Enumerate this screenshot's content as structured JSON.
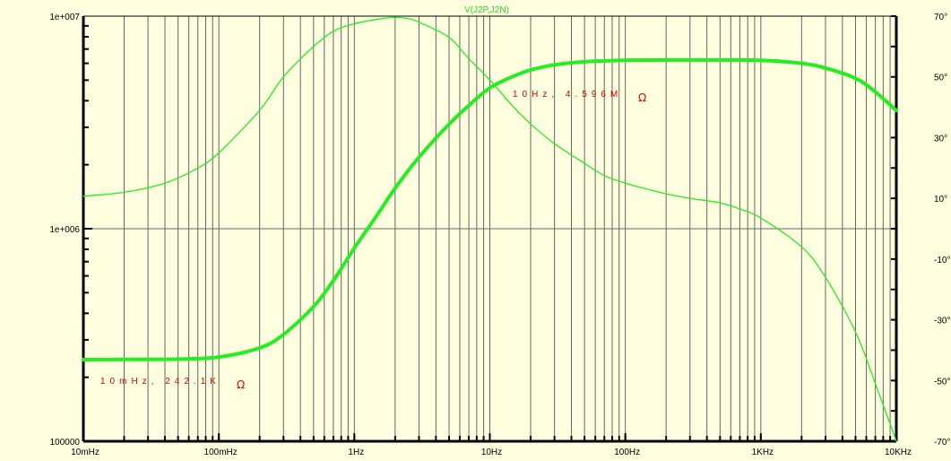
{
  "chart_data": {
    "type": "line",
    "title": "V(J2P,J2N)",
    "x_scale": "log",
    "x_range_hz": [
      0.01,
      10000
    ],
    "x_tick_labels": [
      {
        "hz": 0.01,
        "label": "10mHz"
      },
      {
        "hz": 0.1,
        "label": "100mHz"
      },
      {
        "hz": 1,
        "label": "1Hz"
      },
      {
        "hz": 10,
        "label": "10Hz"
      },
      {
        "hz": 100,
        "label": "100Hz"
      },
      {
        "hz": 1000,
        "label": "1KHz"
      },
      {
        "hz": 10000,
        "label": "10KHz"
      }
    ],
    "y_left_scale": "log",
    "y_left_range": [
      100000,
      10000000
    ],
    "y_left_tick_labels": [
      {
        "value": 100000,
        "label": "100000"
      },
      {
        "value": 1000000,
        "label": "1e+006"
      },
      {
        "value": 10000000,
        "label": "1e+007"
      }
    ],
    "y_right_range_deg": [
      -70,
      70
    ],
    "y_right_tick_labels": [
      {
        "value": 70,
        "label": "70°"
      },
      {
        "value": 50,
        "label": "50°"
      },
      {
        "value": 30,
        "label": "30°"
      },
      {
        "value": 10,
        "label": "10°"
      },
      {
        "value": -10,
        "label": "-10°"
      },
      {
        "value": -30,
        "label": "-30°"
      },
      {
        "value": -50,
        "label": "-50°"
      },
      {
        "value": -70,
        "label": "-70°"
      }
    ],
    "grid": true,
    "series": [
      {
        "axis": "left",
        "points": [
          [
            0.01,
            242100
          ],
          [
            0.02,
            242500
          ],
          [
            0.05,
            243500
          ],
          [
            0.1,
            249000
          ],
          [
            0.2,
            275000
          ],
          [
            0.3,
            318000
          ],
          [
            0.5,
            430000
          ],
          [
            0.7,
            570000
          ],
          [
            1,
            810000
          ],
          [
            1.5,
            1180000
          ],
          [
            2,
            1550000
          ],
          [
            3,
            2170000
          ],
          [
            5,
            3100000
          ],
          [
            7,
            3800000
          ],
          [
            10,
            4596000
          ],
          [
            15,
            5220000
          ],
          [
            20,
            5580000
          ],
          [
            30,
            5900000
          ],
          [
            50,
            6100000
          ],
          [
            100,
            6200000
          ],
          [
            200,
            6220000
          ],
          [
            500,
            6220000
          ],
          [
            1000,
            6200000
          ],
          [
            2000,
            6000000
          ],
          [
            3000,
            5700000
          ],
          [
            5000,
            5100000
          ],
          [
            7000,
            4400000
          ],
          [
            10000,
            3600000
          ]
        ]
      },
      {
        "axis": "right",
        "points": [
          [
            0.01,
            10.7
          ],
          [
            0.02,
            12
          ],
          [
            0.04,
            15
          ],
          [
            0.07,
            20
          ],
          [
            0.1,
            25
          ],
          [
            0.2,
            39
          ],
          [
            0.3,
            50
          ],
          [
            0.5,
            60
          ],
          [
            0.7,
            65
          ],
          [
            1,
            67.5
          ],
          [
            1.5,
            69
          ],
          [
            2,
            69.6
          ],
          [
            2.5,
            69.2
          ],
          [
            3,
            68
          ],
          [
            5,
            63
          ],
          [
            7,
            56
          ],
          [
            10,
            49
          ],
          [
            15,
            40
          ],
          [
            20,
            34.5
          ],
          [
            30,
            28
          ],
          [
            50,
            21.5
          ],
          [
            70,
            17.5
          ],
          [
            100,
            15
          ],
          [
            200,
            11.5
          ],
          [
            300,
            10
          ],
          [
            500,
            8.5
          ],
          [
            700,
            6.5
          ],
          [
            1000,
            3.5
          ],
          [
            2000,
            -6
          ],
          [
            3000,
            -16
          ],
          [
            5000,
            -34
          ],
          [
            7000,
            -51
          ],
          [
            10000,
            -70
          ]
        ]
      }
    ],
    "annotations": [
      {
        "text": "10Hz, 4.596M",
        "unit": "Ω"
      },
      {
        "text": "10mHz, 242.1K",
        "unit": "Ω"
      }
    ],
    "colors": {
      "background": "#FFFFE0",
      "curve": "#22EE22",
      "grid": "#666666",
      "annotation": "#E00000"
    }
  }
}
